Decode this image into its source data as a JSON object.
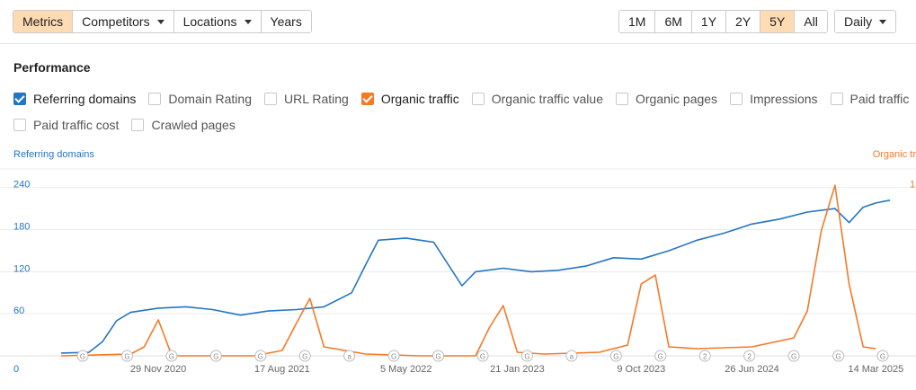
{
  "toolbar": {
    "left_group": [
      {
        "label": "Metrics",
        "active": true,
        "dropdown": false
      },
      {
        "label": "Competitors",
        "active": false,
        "dropdown": true
      },
      {
        "label": "Locations",
        "active": false,
        "dropdown": true
      },
      {
        "label": "Years",
        "active": false,
        "dropdown": false
      }
    ],
    "ranges": [
      {
        "label": "1M",
        "active": false
      },
      {
        "label": "6M",
        "active": false
      },
      {
        "label": "1Y",
        "active": false
      },
      {
        "label": "2Y",
        "active": false
      },
      {
        "label": "5Y",
        "active": true
      },
      {
        "label": "All",
        "active": false
      }
    ],
    "interval": {
      "label": "Daily"
    }
  },
  "section_title": "Performance",
  "metrics_row1": [
    {
      "label": "Referring domains",
      "checked": true,
      "color": "#2376c4"
    },
    {
      "label": "Domain Rating",
      "checked": false
    },
    {
      "label": "URL Rating",
      "checked": false
    },
    {
      "label": "Organic traffic",
      "checked": true,
      "color": "#f47a28"
    },
    {
      "label": "Organic traffic value",
      "checked": false
    },
    {
      "label": "Organic pages",
      "checked": false
    },
    {
      "label": "Impressions",
      "checked": false
    },
    {
      "label": "Paid traffic",
      "checked": false
    }
  ],
  "metrics_row2": [
    {
      "label": "Paid traffic cost",
      "checked": false
    },
    {
      "label": "Crawled pages",
      "checked": false
    }
  ],
  "chart_data": {
    "type": "line",
    "left_axis_title": "Referring domains",
    "right_axis_title": "Organic tr",
    "left_ticks": [
      "240",
      "180",
      "120",
      "60",
      "0"
    ],
    "right_ticks": [
      "1"
    ],
    "x_ticks": [
      "29 Nov 2020",
      "17 Aug 2021",
      "5 May 2022",
      "21 Jan 2023",
      "9 Oct 2023",
      "26 Jun 2024",
      "14 Mar 2025"
    ],
    "ylim_left": [
      0,
      240
    ],
    "grid": true,
    "colors": {
      "referring_domains": "#2376c4",
      "organic_traffic": "#f47a28"
    },
    "series": [
      {
        "name": "Referring domains",
        "axis": "left",
        "x": [
          "2020-04",
          "2020-06",
          "2020-07",
          "2020-08",
          "2020-09",
          "2020-11",
          "2021-01",
          "2021-03",
          "2021-05",
          "2021-07",
          "2021-09",
          "2021-11",
          "2022-01",
          "2022-02",
          "2022-03",
          "2022-05",
          "2022-07",
          "2022-09",
          "2022-10",
          "2022-12",
          "2023-02",
          "2023-04",
          "2023-06",
          "2023-08",
          "2023-10",
          "2023-12",
          "2024-02",
          "2024-04",
          "2024-06",
          "2024-08",
          "2024-10",
          "2024-12",
          "2025-01",
          "2025-02",
          "2025-03",
          "2025-04"
        ],
        "values": [
          4,
          5,
          20,
          50,
          62,
          68,
          70,
          66,
          58,
          64,
          66,
          70,
          90,
          130,
          165,
          168,
          162,
          100,
          120,
          125,
          120,
          122,
          128,
          140,
          138,
          150,
          165,
          175,
          188,
          195,
          205,
          210,
          190,
          212,
          218,
          222
        ]
      },
      {
        "name": "Organic traffic",
        "axis": "right",
        "x": [
          "2020-04",
          "2020-09",
          "2020-10",
          "2020-11",
          "2020-12",
          "2021-02",
          "2021-06",
          "2021-08",
          "2021-09",
          "2021-10",
          "2021-11",
          "2022-02",
          "2022-06",
          "2022-10",
          "2022-11",
          "2022-12",
          "2023-01",
          "2023-03",
          "2023-07",
          "2023-09",
          "2023-10",
          "2023-11",
          "2023-12",
          "2024-02",
          "2024-06",
          "2024-09",
          "2024-10",
          "2024-11",
          "2024-12",
          "2025-01",
          "2025-02",
          "2025-03"
        ],
        "values": [
          0.0,
          0.01,
          0.05,
          0.2,
          0.0,
          0.0,
          0.0,
          0.03,
          0.18,
          0.32,
          0.05,
          0.01,
          0.0,
          0.0,
          0.16,
          0.28,
          0.02,
          0.01,
          0.02,
          0.06,
          0.4,
          0.45,
          0.05,
          0.04,
          0.05,
          0.1,
          0.25,
          0.7,
          0.95,
          0.4,
          0.05,
          0.04
        ]
      }
    ],
    "annotations": [
      "G",
      "G",
      "G",
      "G",
      "G",
      "G",
      "a",
      "G",
      "G",
      "G",
      "G",
      "a",
      "G",
      "G",
      "2",
      "2",
      "G",
      "G",
      "G"
    ]
  }
}
